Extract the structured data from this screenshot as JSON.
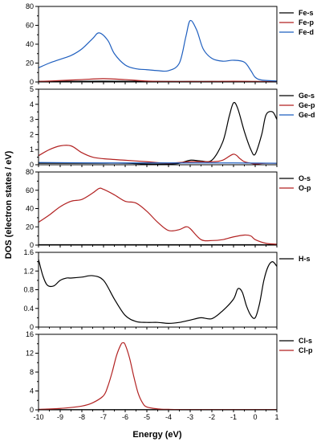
{
  "chart_data": {
    "type": "line",
    "shared_x": {
      "label": "Energy (eV)",
      "lim": [
        -10,
        1
      ],
      "ticks": [
        -10,
        -9,
        -8,
        -7,
        -6,
        -5,
        -4,
        -3,
        -2,
        -1,
        0,
        1
      ]
    },
    "ylabel": "DOS (electron states / eV)",
    "panels": [
      {
        "ylim": [
          0,
          80
        ],
        "yticks": [
          0,
          20,
          40,
          60,
          80
        ],
        "series": [
          {
            "name": "Fe-s",
            "color": "#000000",
            "x": [
              -10,
              -8,
              -6,
              -4,
              -2,
              0,
              1
            ],
            "y": [
              0.5,
              0.8,
              0.8,
              0.6,
              0.5,
              0.4,
              0.3
            ]
          },
          {
            "name": "Fe-p",
            "color": "#b22222",
            "x": [
              -10,
              -9,
              -8,
              -7,
              -6,
              -5,
              -4,
              -3,
              -2,
              -1,
              0,
              1
            ],
            "y": [
              0.5,
              1.5,
              2.5,
              3.5,
              2.5,
              1,
              0.5,
              0.5,
              0.5,
              0.8,
              0.5,
              0.3
            ]
          },
          {
            "name": "Fe-d",
            "color": "#1f5fbf",
            "x": [
              -10,
              -9.5,
              -9,
              -8.5,
              -8,
              -7.5,
              -7.2,
              -6.8,
              -6.5,
              -6,
              -5.5,
              -5,
              -4.5,
              -4,
              -3.5,
              -3.2,
              -3,
              -2.7,
              -2.4,
              -2,
              -1.5,
              -1,
              -0.5,
              -0.2,
              0,
              0.3,
              1
            ],
            "y": [
              15,
              20,
              24,
              28,
              35,
              46,
              52,
              44,
              30,
              18,
              14,
              13,
              12,
              12,
              20,
              48,
              65,
              55,
              35,
              25,
              22,
              23,
              21,
              12,
              5,
              2,
              1
            ]
          }
        ],
        "legend": [
          "Fe-s",
          "Fe-p",
          "Fe-d"
        ]
      },
      {
        "ylim": [
          0,
          5
        ],
        "yticks": [
          0,
          1,
          2,
          3,
          4,
          5
        ],
        "series": [
          {
            "name": "Ge-s",
            "color": "#000000",
            "x": [
              -10,
              -9,
              -8,
              -7,
              -6,
              -5,
              -4,
              -3.5,
              -3,
              -2.5,
              -2,
              -1.5,
              -1.2,
              -1,
              -0.8,
              -0.5,
              -0.2,
              0,
              0.3,
              0.5,
              0.8,
              1
            ],
            "y": [
              0.1,
              0.1,
              0.1,
              0.1,
              0.1,
              0.05,
              0.05,
              0.1,
              0.3,
              0.25,
              0.3,
              1.5,
              3.2,
              4.1,
              3.7,
              2.2,
              1.0,
              0.7,
              2.0,
              3.3,
              3.5,
              3.0
            ]
          },
          {
            "name": "Ge-p",
            "color": "#b22222",
            "x": [
              -10,
              -9.5,
              -9,
              -8.5,
              -8,
              -7.5,
              -7,
              -6,
              -5,
              -4,
              -3,
              -2,
              -1.5,
              -1,
              -0.7,
              -0.5,
              -0.2,
              0,
              0.5,
              1
            ],
            "y": [
              0.6,
              1.0,
              1.25,
              1.25,
              0.8,
              0.5,
              0.4,
              0.3,
              0.2,
              0.1,
              0.2,
              0.2,
              0.3,
              0.7,
              0.4,
              0.2,
              0.1,
              0.05,
              0.1,
              0.1
            ]
          },
          {
            "name": "Ge-d",
            "color": "#1f5fbf",
            "x": [
              -10,
              -7,
              -4,
              -1,
              1
            ],
            "y": [
              0.15,
              0.12,
              0.12,
              0.12,
              0.1
            ]
          }
        ],
        "legend": [
          "Ge-s",
          "Ge-p",
          "Ge-d"
        ]
      },
      {
        "ylim": [
          0,
          80
        ],
        "yticks": [
          0,
          20,
          40,
          60,
          80
        ],
        "series": [
          {
            "name": "O-s",
            "color": "#000000",
            "x": [
              -10,
              -5,
              0,
              1
            ],
            "y": [
              0.5,
              0.5,
              0.5,
              0.3
            ]
          },
          {
            "name": "O-p",
            "color": "#b22222",
            "x": [
              -10,
              -9.5,
              -9,
              -8.5,
              -8,
              -7.5,
              -7.2,
              -7,
              -6.5,
              -6,
              -5.5,
              -5,
              -4.5,
              -4,
              -3.5,
              -3.2,
              -3,
              -2.5,
              -2,
              -1.5,
              -1,
              -0.5,
              -0.2,
              0,
              0.5,
              1
            ],
            "y": [
              25,
              33,
              42,
              48,
              50,
              57,
              62,
              61,
              55,
              48,
              46,
              37,
              25,
              16,
              17,
              20,
              18,
              6,
              5,
              6,
              9,
              11,
              10,
              6,
              2,
              1
            ]
          }
        ],
        "legend": [
          "O-s",
          "O-p"
        ]
      },
      {
        "ylim": [
          0,
          1.6
        ],
        "yticks": [
          0,
          0.4,
          0.8,
          1.2,
          1.6
        ],
        "tick_labels": [
          "0",
          "0.4",
          "0.8",
          "1.2",
          "1.6"
        ],
        "series": [
          {
            "name": "H-s",
            "color": "#000000",
            "x": [
              -10,
              -9.8,
              -9.6,
              -9.3,
              -9,
              -8.7,
              -8.5,
              -8,
              -7.5,
              -7,
              -6.5,
              -6,
              -5.5,
              -5,
              -4.5,
              -4,
              -3.5,
              -3,
              -2.5,
              -2,
              -1.5,
              -1,
              -0.8,
              -0.6,
              -0.4,
              -0.2,
              0,
              0.2,
              0.4,
              0.6,
              0.8,
              1
            ],
            "y": [
              1.45,
              1.1,
              0.9,
              0.88,
              1.0,
              1.05,
              1.05,
              1.07,
              1.1,
              1.0,
              0.6,
              0.25,
              0.12,
              0.1,
              0.1,
              0.08,
              0.1,
              0.15,
              0.2,
              0.18,
              0.35,
              0.6,
              0.82,
              0.75,
              0.45,
              0.25,
              0.2,
              0.5,
              1.0,
              1.3,
              1.4,
              1.3
            ]
          }
        ],
        "legend": [
          "H-s"
        ]
      },
      {
        "ylim": [
          0,
          16
        ],
        "yticks": [
          0,
          4,
          8,
          12,
          16
        ],
        "series": [
          {
            "name": "Cl-s",
            "color": "#000000",
            "x": [
              -10,
              -5,
              0,
              1
            ],
            "y": [
              0.05,
              0.05,
              0.05,
              0.05
            ]
          },
          {
            "name": "Cl-p",
            "color": "#b22222",
            "x": [
              -10,
              -9,
              -8,
              -7.5,
              -7,
              -6.8,
              -6.6,
              -6.4,
              -6.2,
              -6.1,
              -6.0,
              -5.8,
              -5.6,
              -5.4,
              -5.2,
              -5,
              -4.5,
              -4,
              -3,
              0,
              1
            ],
            "y": [
              0.1,
              0.3,
              0.8,
              1.5,
              3.0,
              5.0,
              8.0,
              11.5,
              13.8,
              14.2,
              13.8,
              11.0,
              7.0,
              3.5,
              1.5,
              0.6,
              0.2,
              0.1,
              0.05,
              0.05,
              0.05
            ]
          }
        ],
        "legend": [
          "Cl-s",
          "Cl-p"
        ]
      }
    ]
  }
}
